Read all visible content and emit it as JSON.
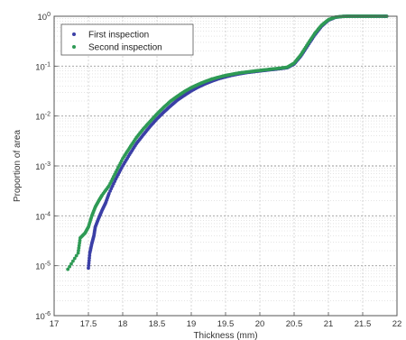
{
  "chart_data": {
    "type": "scatter",
    "title": "",
    "xlabel": "Thickness (mm)",
    "ylabel": "Proportion of area",
    "x_scale": "linear",
    "y_scale": "log",
    "xlim": [
      17,
      22
    ],
    "ylim": [
      1e-06,
      1
    ],
    "x_ticks": [
      17,
      17.5,
      18,
      18.5,
      19,
      19.5,
      20,
      20.5,
      21,
      21.5,
      22
    ],
    "x_tick_labels": [
      "17",
      "17.5",
      "18",
      "18.5",
      "19",
      "19.5",
      "20",
      "20.5",
      "21",
      "21.5",
      "22"
    ],
    "y_tick_labels": [
      {
        "base": "10",
        "exp": "-6"
      },
      {
        "base": "10",
        "exp": "-5"
      },
      {
        "base": "10",
        "exp": "-4"
      },
      {
        "base": "10",
        "exp": "-3"
      },
      {
        "base": "10",
        "exp": "-2"
      },
      {
        "base": "10",
        "exp": "-1"
      },
      {
        "base": "10",
        "exp": "0"
      }
    ],
    "grid": true,
    "legend_position": "top-left",
    "series": [
      {
        "name": "First inspection",
        "color": "#3b3fa6",
        "points": [
          [
            17.5,
            9e-06
          ],
          [
            17.52,
            1.8e-05
          ],
          [
            17.55,
            2.8e-05
          ],
          [
            17.58,
            4e-05
          ],
          [
            17.6,
            6e-05
          ],
          [
            17.65,
            9e-05
          ],
          [
            17.7,
            0.00013
          ],
          [
            17.75,
            0.00018
          ],
          [
            17.8,
            0.00028
          ],
          [
            17.9,
            0.00055
          ],
          [
            18.0,
            0.001
          ],
          [
            18.1,
            0.0017
          ],
          [
            18.2,
            0.0028
          ],
          [
            18.3,
            0.0042
          ],
          [
            18.4,
            0.0062
          ],
          [
            18.5,
            0.0088
          ],
          [
            18.6,
            0.012
          ],
          [
            18.7,
            0.016
          ],
          [
            18.8,
            0.021
          ],
          [
            18.9,
            0.026
          ],
          [
            19.0,
            0.032
          ],
          [
            19.1,
            0.038
          ],
          [
            19.2,
            0.044
          ],
          [
            19.3,
            0.05
          ],
          [
            19.4,
            0.056
          ],
          [
            19.5,
            0.061
          ],
          [
            19.6,
            0.066
          ],
          [
            19.7,
            0.07
          ],
          [
            19.8,
            0.074
          ],
          [
            19.9,
            0.077
          ],
          [
            20.0,
            0.08
          ],
          [
            20.1,
            0.083
          ],
          [
            20.2,
            0.086
          ],
          [
            20.3,
            0.089
          ],
          [
            20.4,
            0.093
          ],
          [
            20.5,
            0.11
          ],
          [
            20.6,
            0.16
          ],
          [
            20.7,
            0.26
          ],
          [
            20.8,
            0.42
          ],
          [
            20.9,
            0.63
          ],
          [
            21.0,
            0.83
          ],
          [
            21.1,
            0.95
          ],
          [
            21.2,
            0.99
          ],
          [
            21.3,
            1.0
          ],
          [
            21.4,
            1.0
          ],
          [
            21.5,
            1.0
          ],
          [
            21.6,
            1.0
          ],
          [
            21.7,
            1.0
          ],
          [
            21.8,
            1.0
          ],
          [
            21.85,
            1.0
          ]
        ]
      },
      {
        "name": "Second inspection",
        "color": "#2e9a55",
        "points": [
          [
            17.2,
            8.5e-06
          ],
          [
            17.35,
            1.8e-05
          ],
          [
            17.38,
            3.6e-05
          ],
          [
            17.45,
            4.5e-05
          ],
          [
            17.5,
            6e-05
          ],
          [
            17.55,
            0.0001
          ],
          [
            17.6,
            0.00015
          ],
          [
            17.65,
            0.0002
          ],
          [
            17.7,
            0.00026
          ],
          [
            17.8,
            0.0004
          ],
          [
            17.9,
            0.00075
          ],
          [
            18.0,
            0.0014
          ],
          [
            18.1,
            0.0023
          ],
          [
            18.2,
            0.0037
          ],
          [
            18.3,
            0.0055
          ],
          [
            18.4,
            0.0078
          ],
          [
            18.5,
            0.011
          ],
          [
            18.6,
            0.015
          ],
          [
            18.7,
            0.02
          ],
          [
            18.8,
            0.025
          ],
          [
            18.9,
            0.031
          ],
          [
            19.0,
            0.037
          ],
          [
            19.1,
            0.043
          ],
          [
            19.2,
            0.049
          ],
          [
            19.3,
            0.055
          ],
          [
            19.4,
            0.06
          ],
          [
            19.5,
            0.065
          ],
          [
            19.6,
            0.069
          ],
          [
            19.7,
            0.073
          ],
          [
            19.8,
            0.076
          ],
          [
            19.9,
            0.079
          ],
          [
            20.0,
            0.082
          ],
          [
            20.1,
            0.085
          ],
          [
            20.2,
            0.088
          ],
          [
            20.3,
            0.091
          ],
          [
            20.4,
            0.095
          ],
          [
            20.5,
            0.115
          ],
          [
            20.6,
            0.17
          ],
          [
            20.7,
            0.28
          ],
          [
            20.8,
            0.45
          ],
          [
            20.9,
            0.66
          ],
          [
            21.0,
            0.85
          ],
          [
            21.1,
            0.96
          ],
          [
            21.2,
            0.99
          ],
          [
            21.3,
            1.0
          ],
          [
            21.4,
            1.0
          ],
          [
            21.5,
            1.0
          ],
          [
            21.6,
            1.0
          ],
          [
            21.7,
            1.0
          ],
          [
            21.85,
            1.0
          ]
        ]
      }
    ]
  }
}
